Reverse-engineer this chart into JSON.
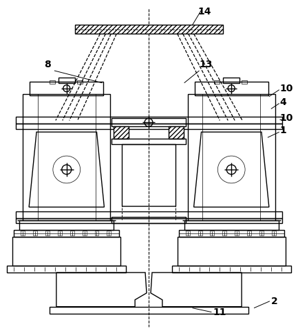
{
  "bg_color": "#ffffff",
  "lw": 1.0,
  "fig_width": 4.33,
  "fig_height": 4.88,
  "dpi": 100
}
